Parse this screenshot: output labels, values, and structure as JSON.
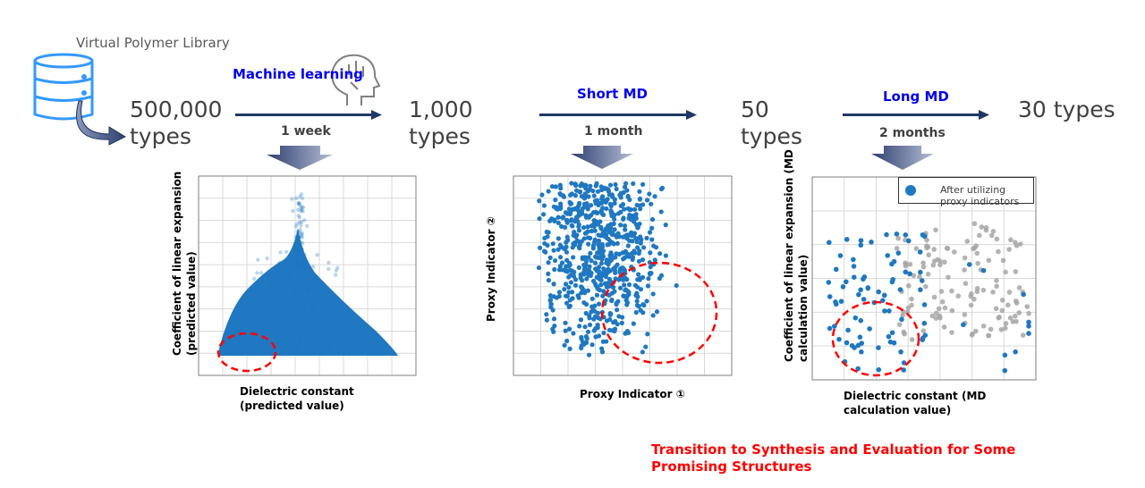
{
  "library": {
    "title": "Virtual Polymer Library",
    "count": "500,000",
    "unit": "types"
  },
  "stages": [
    {
      "label": "Machine learning",
      "duration": "1 week",
      "result_count": "1,000",
      "result_unit": "types"
    },
    {
      "label": "Short MD",
      "duration": "1 month",
      "result_count": "50",
      "result_unit": "types"
    },
    {
      "label": "Long MD",
      "duration": "2 months",
      "result_count": "30 types"
    }
  ],
  "plots": [
    {
      "ylabel1": "Coefficient of linear expansion",
      "ylabel2": "(predicted value)",
      "xlabel1": "Dielectric constant",
      "xlabel2": "(predicted value)"
    },
    {
      "ylabel": "Proxy Indicator ②",
      "xlabel": "Proxy Indicator ①"
    },
    {
      "ylabel1": "Coefficient of linear expansion (MD",
      "ylabel2": "calculation value)",
      "xlabel1": "Dielectric constant (MD",
      "xlabel2": "calculation value)",
      "legend": "After utilizing proxy indicators"
    }
  ],
  "conclusion": {
    "line1": "Transition to Synthesis and Evaluation for Some",
    "line2": "Promising Structures"
  },
  "colors": {
    "arrow": "#1f3864",
    "stage_text": "#0000ee",
    "points": "#1f78c1",
    "gray_points": "#a6a6a6",
    "highlight": "#ff0000",
    "database_icon": "#3399ff"
  }
}
